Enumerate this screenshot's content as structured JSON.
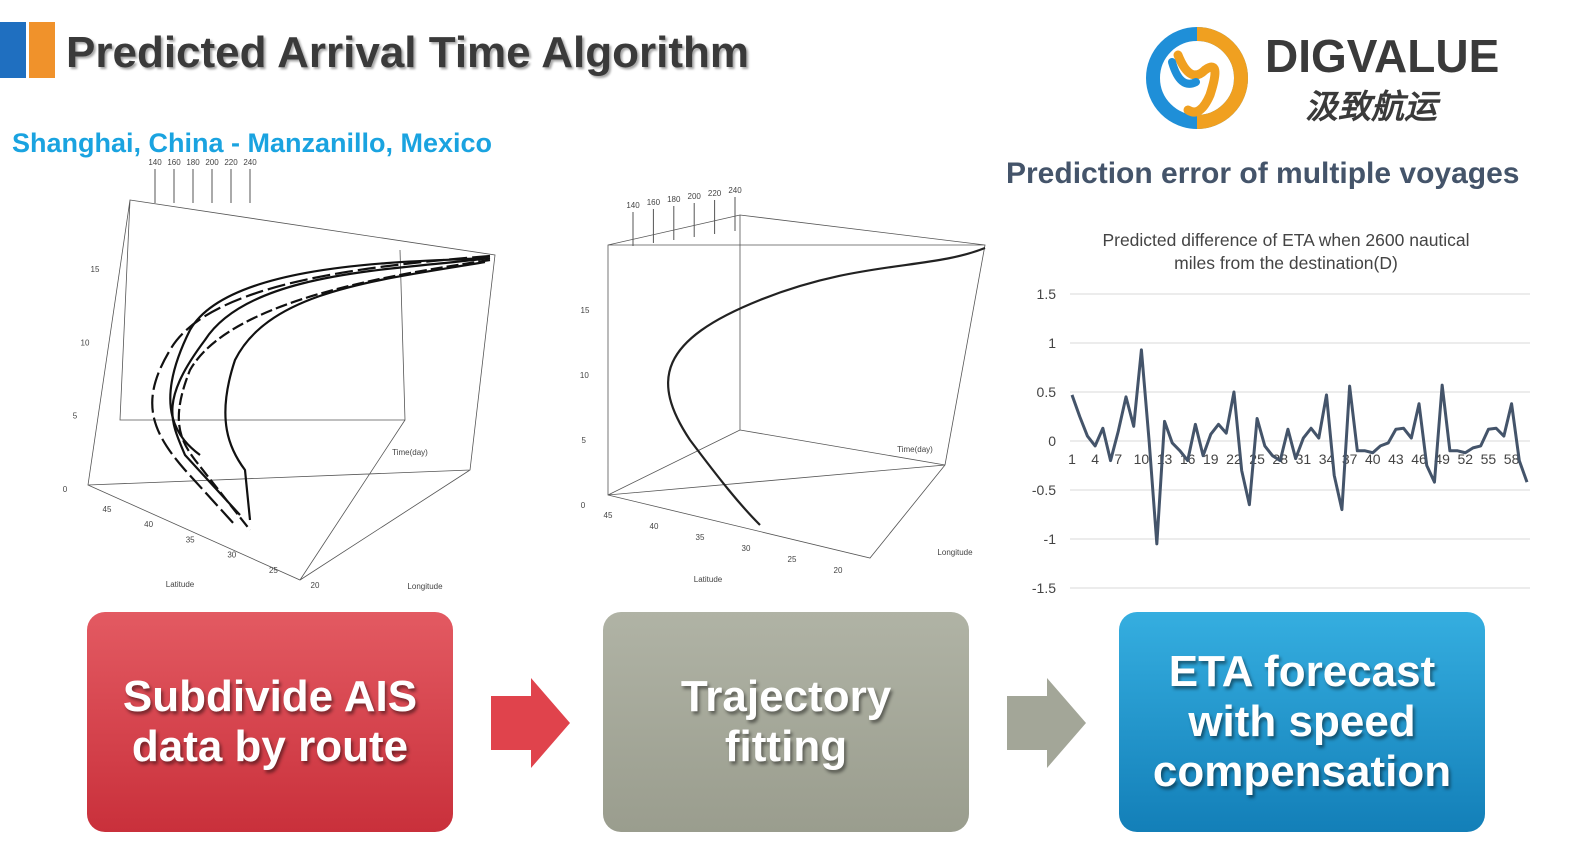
{
  "header": {
    "title": "Predicted Arrival Time Algorithm",
    "route": "Shanghai, China - Manzanillo, Mexico"
  },
  "logo": {
    "name": "DIGVALUE",
    "name_cn": "汲致航运"
  },
  "plots": [
    {
      "top_ticks": [
        "140",
        "160",
        "180",
        "200",
        "220",
        "240"
      ],
      "z_ticks": [
        "15",
        "10",
        "5",
        "0"
      ],
      "lat_ticks": [
        "45",
        "40",
        "35",
        "30",
        "25",
        "20"
      ],
      "lat_label": "Latitude",
      "lon_label": "Longitude",
      "time_label": "Time(day)"
    },
    {
      "top_ticks": [
        "140",
        "160",
        "180",
        "200",
        "220",
        "240"
      ],
      "z_ticks": [
        "15",
        "10",
        "5",
        "0"
      ],
      "lat_ticks": [
        "45",
        "40",
        "35",
        "30",
        "25",
        "20"
      ],
      "lat_label": "Latitude",
      "lon_label": "Longitude",
      "time_label": "Time(day)"
    }
  ],
  "section_title": "Prediction error of multiple voyages",
  "chart_data": {
    "type": "line",
    "title": "Predicted difference of ETA  when 2600 nautical miles from the destination(D)",
    "categories": [
      "1",
      null,
      null,
      "4",
      null,
      null,
      "7",
      null,
      null,
      "10",
      null,
      null,
      "13",
      null,
      null,
      "16",
      null,
      null,
      "19",
      null,
      null,
      "22",
      null,
      null,
      "25",
      null,
      null,
      "28",
      null,
      null,
      "31",
      null,
      null,
      "34",
      null,
      null,
      "37",
      null,
      null,
      "40",
      null,
      null,
      "43",
      null,
      null,
      "46",
      null,
      null,
      "49",
      null,
      null,
      "52",
      null,
      null,
      "55",
      null,
      null,
      "58",
      null,
      null
    ],
    "series": [
      {
        "color": "#44546a",
        "values": [
          0.47,
          0.25,
          0.05,
          -0.05,
          0.13,
          -0.2,
          0.1,
          0.45,
          0.15,
          0.93,
          0.0,
          -1.05,
          0.2,
          -0.02,
          -0.1,
          -0.2,
          0.17,
          -0.15,
          0.07,
          0.17,
          0.08,
          0.5,
          -0.3,
          -0.65,
          0.23,
          -0.05,
          -0.15,
          -0.2,
          0.12,
          -0.18,
          0.03,
          0.13,
          0.03,
          0.47,
          -0.35,
          -0.7,
          0.56,
          -0.1,
          -0.1,
          -0.12,
          -0.05,
          -0.02,
          0.12,
          0.13,
          0.03,
          0.38,
          -0.25,
          -0.42,
          0.57,
          -0.1,
          -0.1,
          -0.12,
          -0.07,
          -0.05,
          0.12,
          0.13,
          0.05,
          0.38,
          -0.2,
          -0.42
        ]
      }
    ],
    "ylim": [
      -1.5,
      1.5
    ],
    "yticks": [
      1.5,
      1,
      0.5,
      0,
      -0.5,
      -1,
      -1.5
    ],
    "grid": true
  },
  "steps": [
    "Subdivide AIS data by route",
    "Trajectory fitting",
    "ETA forecast with speed compensation"
  ]
}
